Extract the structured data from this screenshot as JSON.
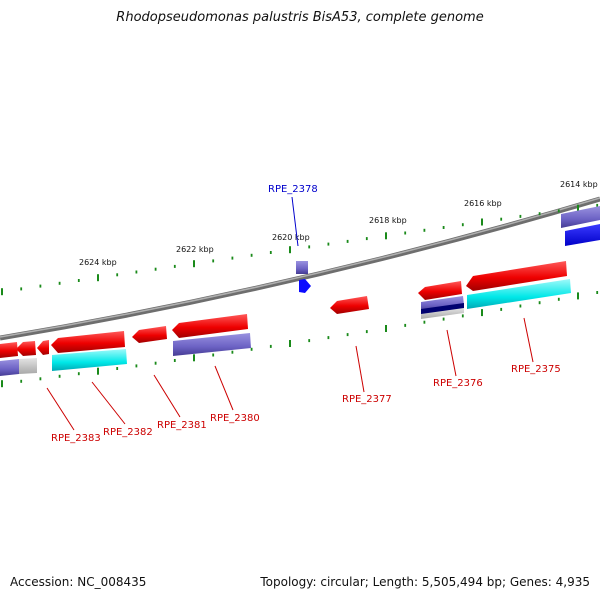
{
  "title": "Rhodopseudomonas palustris BisA53, complete genome",
  "accession": "Accession: NC_008435",
  "summary": "Topology: circular; Length: 5,505,494 bp; Genes: 4,935",
  "colors": {
    "backbone": "#8c8c8c",
    "tick": "#1a8a1a",
    "cds": "#ff0000",
    "cds_dark": "#b30000",
    "feature_purple": "#7a6fd0",
    "feature_cyan": "#00e5e5",
    "feature_blue": "#0000ff",
    "feature_navy": "#000080",
    "feature_gray": "#c0c0c0",
    "label_red": "#cc0000",
    "label_blue": "#0000cc"
  },
  "scale_labels": [
    "2614 kbp",
    "2616 kbp",
    "2618 kbp",
    "2620 kbp",
    "2622 kbp",
    "2624 kbp"
  ],
  "gene_labels": [
    "RPE_2375",
    "RPE_2376",
    "RPE_2377",
    "RPE_2378",
    "RPE_2380",
    "RPE_2381",
    "RPE_2382",
    "RPE_2383"
  ]
}
